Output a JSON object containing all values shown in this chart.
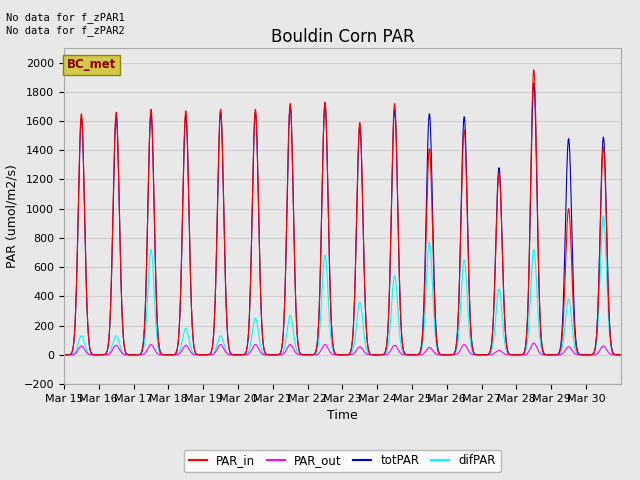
{
  "title": "Bouldin Corn PAR",
  "ylabel": "PAR (umol/m2/s)",
  "xlabel": "Time",
  "ylim": [
    -200,
    2100
  ],
  "background_color": "#e8e8e8",
  "plot_bg_color": "#e8e8e8",
  "no_data_text": [
    "No data for f_zPAR1",
    "No data for f_zPAR2"
  ],
  "legend_box_label": "BC_met",
  "legend_box_color": "#d4c84a",
  "legend_box_text_color": "#8B0000",
  "series_colors": {
    "PAR_in": "#ff0000",
    "PAR_out": "#ff00ff",
    "totPAR": "#0000cc",
    "difPAR": "#00ffff"
  },
  "x_tick_labels": [
    "Mar 15",
    "Mar 16",
    "Mar 17",
    "Mar 18",
    "Mar 19",
    "Mar 20",
    "Mar 21",
    "Mar 22",
    "Mar 23",
    "Mar 24",
    "Mar 25",
    "Mar 26",
    "Mar 27",
    "Mar 28",
    "Mar 29",
    "Mar 30"
  ],
  "n_days": 16,
  "day_peaks": {
    "PAR_in": [
      1650,
      1660,
      1680,
      1670,
      1680,
      1680,
      1720,
      1730,
      1590,
      1720,
      1410,
      1540,
      1240,
      1950,
      1000,
      1420
    ],
    "PAR_out": [
      60,
      65,
      70,
      65,
      70,
      70,
      70,
      70,
      55,
      65,
      50,
      70,
      30,
      80,
      55,
      60
    ],
    "totPAR": [
      1620,
      1630,
      1650,
      1640,
      1660,
      1660,
      1700,
      1710,
      1560,
      1680,
      1650,
      1630,
      1280,
      1860,
      1480,
      1490
    ],
    "difPAR": [
      130,
      130,
      720,
      180,
      130,
      250,
      270,
      680,
      360,
      540,
      770,
      650,
      450,
      720,
      380,
      950
    ]
  },
  "title_fontsize": 12,
  "axis_fontsize": 9,
  "tick_fontsize": 8,
  "grid_color": "#d0d0d0",
  "yticks": [
    -200,
    0,
    200,
    400,
    600,
    800,
    1000,
    1200,
    1400,
    1600,
    1800,
    2000
  ]
}
